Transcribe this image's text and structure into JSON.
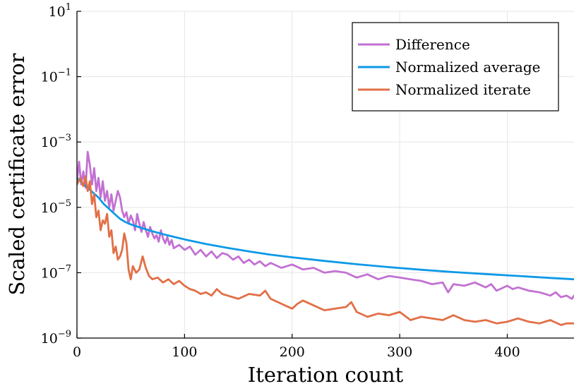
{
  "chart_data": {
    "type": "line",
    "title": "",
    "xlabel": "Iteration count",
    "ylabel": "Scaled certificate error",
    "yscale": "log",
    "xlim": [
      0,
      462
    ],
    "ylim_log10": [
      -9,
      1
    ],
    "xticks": [
      0,
      100,
      200,
      300,
      400
    ],
    "xtick_labels": [
      "0",
      "100",
      "200",
      "300",
      "400"
    ],
    "yticks_log10": [
      -9,
      -7,
      -5,
      -3,
      -1,
      1
    ],
    "ytick_base": "10",
    "ytick_exponents": [
      "−9",
      "−7",
      "−5",
      "−3",
      "−1",
      "1"
    ],
    "grid": true,
    "legend_position": "top-right",
    "legend": [
      "Difference",
      "Normalized average",
      "Normalized iterate"
    ],
    "series": [
      {
        "name": "Difference",
        "color": "#c271d2",
        "x": [
          0,
          2,
          4,
          6,
          8,
          10,
          12,
          14,
          16,
          18,
          20,
          22,
          24,
          26,
          28,
          30,
          32,
          34,
          36,
          38,
          40,
          42,
          44,
          46,
          48,
          50,
          52,
          54,
          56,
          58,
          60,
          62,
          64,
          66,
          68,
          70,
          72,
          74,
          76,
          78,
          80,
          82,
          84,
          86,
          88,
          90,
          95,
          100,
          105,
          110,
          115,
          120,
          125,
          130,
          135,
          140,
          145,
          150,
          155,
          160,
          165,
          170,
          175,
          180,
          190,
          200,
          210,
          220,
          230,
          240,
          250,
          260,
          270,
          280,
          290,
          300,
          310,
          320,
          330,
          340,
          345,
          350,
          360,
          370,
          380,
          385,
          390,
          400,
          405,
          410,
          420,
          430,
          440,
          445,
          450,
          455,
          460,
          462
        ],
        "log10": [
          -4.2,
          -3.6,
          -4.3,
          -3.9,
          -4.4,
          -3.3,
          -3.7,
          -4.3,
          -3.8,
          -4.5,
          -4.1,
          -4.7,
          -4.2,
          -4.8,
          -4.5,
          -5.0,
          -4.6,
          -5.1,
          -4.8,
          -4.5,
          -4.7,
          -5.1,
          -5.3,
          -5.15,
          -5.5,
          -5.25,
          -5.4,
          -5.7,
          -5.2,
          -5.5,
          -5.75,
          -5.45,
          -5.7,
          -5.9,
          -5.6,
          -5.8,
          -5.95,
          -5.85,
          -6.05,
          -5.7,
          -5.95,
          -6.1,
          -5.9,
          -6.15,
          -6.0,
          -6.25,
          -6.15,
          -6.3,
          -6.2,
          -6.45,
          -6.3,
          -6.5,
          -6.35,
          -6.55,
          -6.4,
          -6.45,
          -6.6,
          -6.5,
          -6.7,
          -6.6,
          -6.75,
          -6.65,
          -6.8,
          -6.7,
          -6.85,
          -6.75,
          -6.9,
          -6.85,
          -7.0,
          -6.95,
          -7.0,
          -7.15,
          -7.05,
          -7.2,
          -7.1,
          -7.15,
          -7.2,
          -7.25,
          -7.35,
          -7.3,
          -7.6,
          -7.35,
          -7.4,
          -7.3,
          -7.45,
          -7.35,
          -7.55,
          -7.4,
          -7.5,
          -7.45,
          -7.55,
          -7.6,
          -7.7,
          -7.6,
          -7.75,
          -7.7,
          -7.8,
          -7.7
        ]
      },
      {
        "name": "Normalized average",
        "color": "#0d99e6",
        "x": [
          0,
          5,
          10,
          15,
          20,
          25,
          30,
          35,
          40,
          45,
          50,
          60,
          70,
          80,
          90,
          100,
          120,
          140,
          160,
          180,
          200,
          230,
          260,
          290,
          320,
          350,
          380,
          410,
          440,
          462
        ],
        "log10": [
          -4.1,
          -4.25,
          -4.4,
          -4.55,
          -4.7,
          -4.9,
          -5.05,
          -5.2,
          -5.35,
          -5.45,
          -5.52,
          -5.63,
          -5.73,
          -5.82,
          -5.9,
          -5.98,
          -6.12,
          -6.24,
          -6.35,
          -6.45,
          -6.53,
          -6.64,
          -6.74,
          -6.83,
          -6.91,
          -6.98,
          -7.04,
          -7.1,
          -7.16,
          -7.2
        ]
      },
      {
        "name": "Normalized iterate",
        "color": "#e26f46",
        "x": [
          0,
          3,
          6,
          8,
          10,
          12,
          14,
          16,
          18,
          20,
          22,
          24,
          26,
          28,
          30,
          32,
          34,
          36,
          38,
          40,
          42,
          44,
          46,
          48,
          50,
          52,
          55,
          58,
          61,
          64,
          67,
          70,
          75,
          80,
          85,
          90,
          95,
          100,
          105,
          110,
          115,
          120,
          125,
          130,
          135,
          140,
          145,
          150,
          160,
          170,
          175,
          180,
          190,
          200,
          205,
          210,
          220,
          230,
          240,
          250,
          255,
          260,
          270,
          280,
          290,
          300,
          310,
          320,
          330,
          340,
          350,
          360,
          370,
          380,
          390,
          400,
          410,
          420,
          430,
          440,
          450,
          455,
          462
        ],
        "log10": [
          -4.3,
          -4.1,
          -4.35,
          -4.05,
          -4.5,
          -4.2,
          -4.9,
          -4.6,
          -5.3,
          -5.1,
          -5.7,
          -5.4,
          -5.5,
          -5.2,
          -5.9,
          -5.7,
          -6.4,
          -6.2,
          -6.6,
          -6.5,
          -6.3,
          -5.8,
          -6.1,
          -6.9,
          -7.2,
          -6.8,
          -7.0,
          -6.9,
          -6.5,
          -6.85,
          -7.1,
          -7.2,
          -7.15,
          -7.3,
          -7.2,
          -7.35,
          -7.25,
          -7.4,
          -7.5,
          -7.55,
          -7.65,
          -7.6,
          -7.7,
          -7.5,
          -7.65,
          -7.7,
          -7.75,
          -7.8,
          -7.65,
          -7.7,
          -7.55,
          -7.8,
          -7.95,
          -8.1,
          -7.95,
          -7.85,
          -8.0,
          -8.15,
          -8.1,
          -8.05,
          -7.9,
          -8.2,
          -8.35,
          -8.25,
          -8.3,
          -8.2,
          -8.45,
          -8.35,
          -8.4,
          -8.45,
          -8.3,
          -8.45,
          -8.5,
          -8.45,
          -8.55,
          -8.5,
          -8.4,
          -8.5,
          -8.55,
          -8.45,
          -8.6,
          -8.55,
          -8.55
        ]
      }
    ]
  }
}
